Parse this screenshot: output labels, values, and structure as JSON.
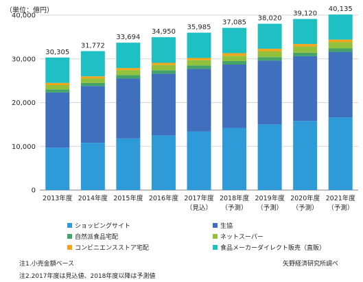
{
  "chart_data": {
    "type": "bar",
    "stacked": true,
    "unit_label": "（単位：億円）",
    "categories": [
      [
        "2013年度"
      ],
      [
        "2014年度"
      ],
      [
        "2015年度"
      ],
      [
        "2016年度"
      ],
      [
        "2017年度",
        "（見込）"
      ],
      [
        "2018年度",
        "（予測）"
      ],
      [
        "2019年度",
        "（予測）"
      ],
      [
        "2020年度",
        "（予測）"
      ],
      [
        "2021年度",
        "（予測）"
      ]
    ],
    "totals": [
      30305,
      31772,
      33694,
      34950,
      35985,
      37085,
      38020,
      39120,
      40135
    ],
    "total_labels": [
      "30,305",
      "31,772",
      "33,694",
      "34,950",
      "35,985",
      "37,085",
      "38,020",
      "39,120",
      "40,135"
    ],
    "series": [
      {
        "name": "ショッピングサイト",
        "color": "#2e9ad8",
        "values": [
          9700,
          10800,
          11800,
          12500,
          13400,
          14200,
          15000,
          15800,
          16600
        ]
      },
      {
        "name": "生協",
        "color": "#3f6fbd",
        "values": [
          12600,
          13000,
          13700,
          14100,
          14300,
          14500,
          14600,
          14800,
          15000
        ]
      },
      {
        "name": "自然派食品宅配",
        "color": "#44a468",
        "values": [
          700,
          700,
          800,
          800,
          800,
          800,
          800,
          800,
          800
        ]
      },
      {
        "name": "ネットスーパー",
        "color": "#92c13d",
        "values": [
          1000,
          1000,
          1100,
          1200,
          1200,
          1200,
          1300,
          1400,
          1400
        ]
      },
      {
        "name": "コンビニエンスストア宅配",
        "color": "#f2a41b",
        "values": [
          500,
          500,
          500,
          500,
          500,
          600,
          600,
          600,
          600
        ]
      },
      {
        "name": "食品メーカーダイレクト販売（直販）",
        "color": "#1fc0c4",
        "values": [
          5805,
          5772,
          5794,
          5850,
          5785,
          5785,
          5720,
          5720,
          5735
        ]
      }
    ],
    "ylim": [
      0,
      40000
    ],
    "yticks": [
      0,
      10000,
      20000,
      30000,
      40000
    ],
    "ytick_labels": [
      "0",
      "10,000",
      "20,000",
      "30,000",
      "40,000"
    ],
    "grid": true,
    "legend_position": "bottom"
  },
  "notes": {
    "note1": "注1.小売金額ベース",
    "note2": "注2.2017年度は見込値、2018年度以降は予測値",
    "source": "矢野経済研究所調べ"
  }
}
